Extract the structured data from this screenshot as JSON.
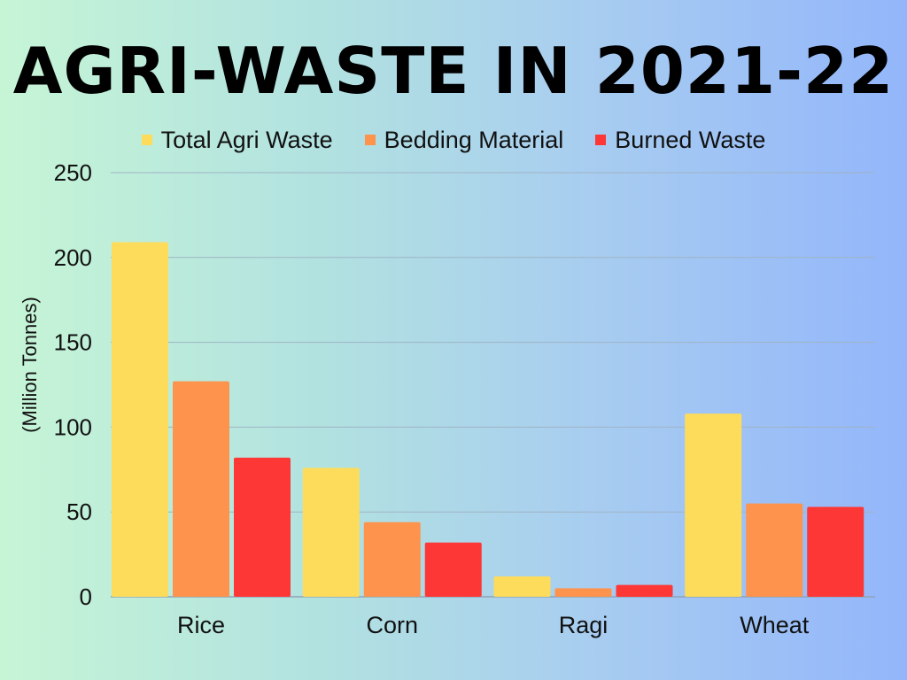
{
  "chart_data": {
    "type": "bar",
    "title": "AGRI-WASTE IN 2021-22",
    "ylabel": "(Million Tonnes)",
    "xlabel": "",
    "categories": [
      "Rice",
      "Corn",
      "Ragi",
      "Wheat"
    ],
    "series": [
      {
        "name": "Total Agri Waste",
        "color": "#fddc5c",
        "values": [
          209,
          76,
          12,
          108
        ]
      },
      {
        "name": "Bedding Material",
        "color": "#fd934c",
        "values": [
          127,
          44,
          5,
          55
        ]
      },
      {
        "name": "Burned Waste",
        "color": "#fd3636",
        "values": [
          82,
          32,
          7,
          53
        ]
      }
    ],
    "yticks": [
      0,
      50,
      100,
      150,
      200,
      250
    ],
    "ylim": [
      0,
      250
    ],
    "grid": true,
    "legend": "top"
  }
}
